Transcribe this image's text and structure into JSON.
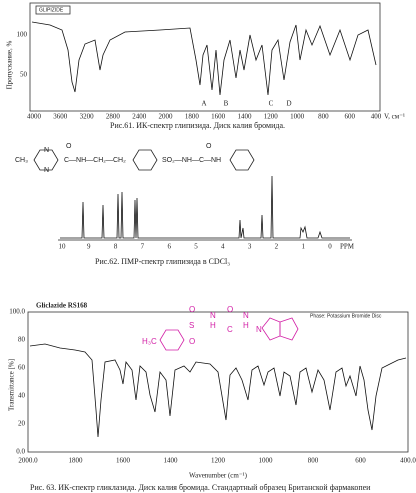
{
  "fig1": {
    "sample_label": "GLIPIZIDE",
    "y_label": "Пропускание, %",
    "yticks": [
      "100",
      "50"
    ],
    "xticks": [
      "4000",
      "3600",
      "3200",
      "2800",
      "2400",
      "2000",
      "1800",
      "1600",
      "1400",
      "1200",
      "1000",
      "800",
      "600",
      "400"
    ],
    "x_unit": "V, см⁻¹",
    "peak_labels": [
      "A",
      "B",
      "C",
      "D"
    ],
    "caption": "Рис.61.  ИК-спектр глипизида.  Диск калия бромида."
  },
  "fig2": {
    "structure": {
      "left": "CH₃",
      "ring_n1": "N",
      "ring_n2": "N",
      "chain": "C—NH—CH₂—CH₂",
      "sulfonyl": "SO₂—NH—C—NH",
      "o1": "O",
      "o2": "O"
    },
    "xticks": [
      "10",
      "9",
      "8",
      "7",
      "6",
      "5",
      "4",
      "3",
      "2",
      "1",
      "0"
    ],
    "x_unit": "PPM",
    "caption": "Рис.62.  ПМР-спектр глипизида в CDCl₃"
  },
  "fig3": {
    "title": "Gliclazide RS168",
    "phase": "Phase:  Potassium Bromide Disc",
    "structure": {
      "methyl": "H₃C",
      "s": "S",
      "o_top": "O",
      "o_bottom": "O",
      "nh1": "N",
      "h1": "H",
      "c": "C",
      "o_c": "O",
      "nh2": "N",
      "h2": "H",
      "n_ring": "N"
    },
    "yticks": [
      "100.0",
      "80",
      "60",
      "40",
      "20",
      "0.0"
    ],
    "y_label": "Transmittance [%]",
    "xticks": [
      "2000.0",
      "1800",
      "1600",
      "1400",
      "1200",
      "1000",
      "800",
      "600",
      "400.0"
    ],
    "x_label": "Wavenumber (cm⁻¹)",
    "caption": "Рис. 63. ИК-спектр гликлазида. Диск калия бромида. Стандартный образец Британской фармакопеи"
  }
}
